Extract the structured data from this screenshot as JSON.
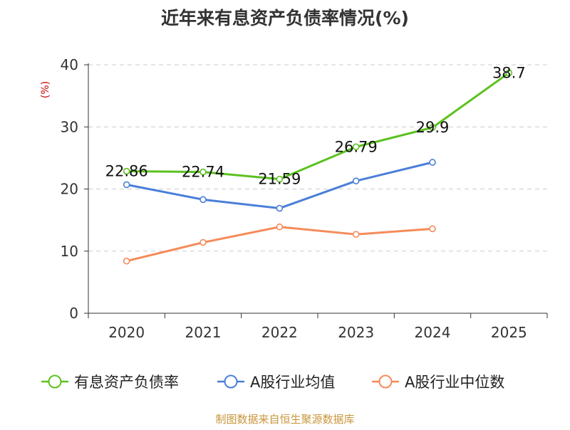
{
  "chart_data": {
    "type": "line",
    "title": "近年来有息资产负债率情况(%)",
    "ylabel": "(%)",
    "xlabel": "",
    "categories": [
      "2020",
      "2021",
      "2022",
      "2023",
      "2024",
      "2025"
    ],
    "ylim": [
      0,
      40
    ],
    "yticks": [
      "0",
      "10",
      "20",
      "30",
      "40"
    ],
    "grid": true,
    "legend_position": "bottom",
    "series": [
      {
        "name": "有息资产负债率",
        "color": "#5cc11f",
        "values": [
          22.86,
          22.74,
          21.59,
          26.79,
          29.9,
          38.7
        ],
        "labels": [
          "22.86",
          "22.74",
          "21.59",
          "26.79",
          "29.9",
          "38.7"
        ]
      },
      {
        "name": "A股行业均值",
        "color": "#4a7fd8",
        "values": [
          20.7,
          18.3,
          16.9,
          21.3,
          24.3,
          null
        ],
        "labels": []
      },
      {
        "name": "A股行业中位数",
        "color": "#f58b5a",
        "values": [
          8.4,
          11.4,
          13.9,
          12.7,
          13.6,
          null
        ],
        "labels": []
      }
    ],
    "source": "制图数据来自恒生聚源数据库",
    "colors": {
      "title": "#333333",
      "axis": "#333333",
      "grid": "#cccccc",
      "ylabel": "#cc0000",
      "source": "#c8963c"
    }
  }
}
